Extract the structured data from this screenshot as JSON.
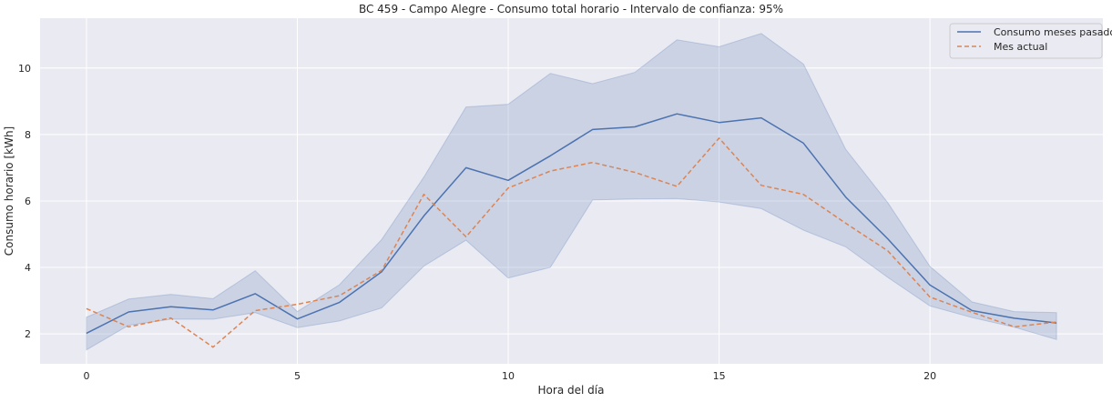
{
  "chart_data": {
    "type": "line",
    "title": "BC 459 - Campo Alegre - Consumo total horario - Intervalo de confianza: 95%",
    "xlabel": "Hora del día",
    "ylabel": "Consumo horario [kWh]",
    "xlim": [
      -1.1,
      24.1
    ],
    "ylim": [
      1.1,
      11.5
    ],
    "xticks": [
      0,
      5,
      10,
      15,
      20
    ],
    "yticks": [
      2,
      4,
      6,
      8,
      10
    ],
    "grid": true,
    "legend_position": "top-right",
    "x": [
      0,
      1,
      2,
      3,
      4,
      5,
      6,
      7,
      8,
      9,
      10,
      11,
      12,
      13,
      14,
      15,
      16,
      17,
      18,
      19,
      20,
      21,
      22,
      23
    ],
    "series": [
      {
        "name": "Consumo meses pasados",
        "color": "#4c72b0",
        "style": "solid",
        "values": [
          2.02,
          2.66,
          2.82,
          2.72,
          3.21,
          2.45,
          2.95,
          3.87,
          5.55,
          7.0,
          6.62,
          7.36,
          8.15,
          8.23,
          8.62,
          8.36,
          8.5,
          7.74,
          6.12,
          4.86,
          3.47,
          2.7,
          2.47,
          2.33
        ],
        "ci_lower": [
          1.52,
          2.26,
          2.44,
          2.44,
          2.64,
          2.19,
          2.39,
          2.78,
          4.04,
          4.82,
          3.68,
          4.0,
          6.03,
          6.06,
          6.07,
          5.97,
          5.77,
          5.12,
          4.62,
          3.7,
          2.84,
          2.49,
          2.2,
          1.83
        ],
        "ci_upper": [
          2.5,
          3.05,
          3.19,
          3.06,
          3.9,
          2.67,
          3.48,
          4.84,
          6.72,
          8.83,
          8.91,
          9.84,
          9.53,
          9.87,
          10.85,
          10.64,
          11.04,
          10.12,
          7.56,
          5.95,
          4.03,
          2.96,
          2.67,
          2.64
        ]
      },
      {
        "name": "Mes actual",
        "color": "#dd8452",
        "style": "dashed",
        "values": [
          2.76,
          2.21,
          2.48,
          1.6,
          2.7,
          2.89,
          3.15,
          3.91,
          6.2,
          4.92,
          6.39,
          6.9,
          7.16,
          6.86,
          6.44,
          7.89,
          6.47,
          6.2,
          5.33,
          4.5,
          3.11,
          2.65,
          2.21,
          2.36
        ]
      }
    ]
  }
}
